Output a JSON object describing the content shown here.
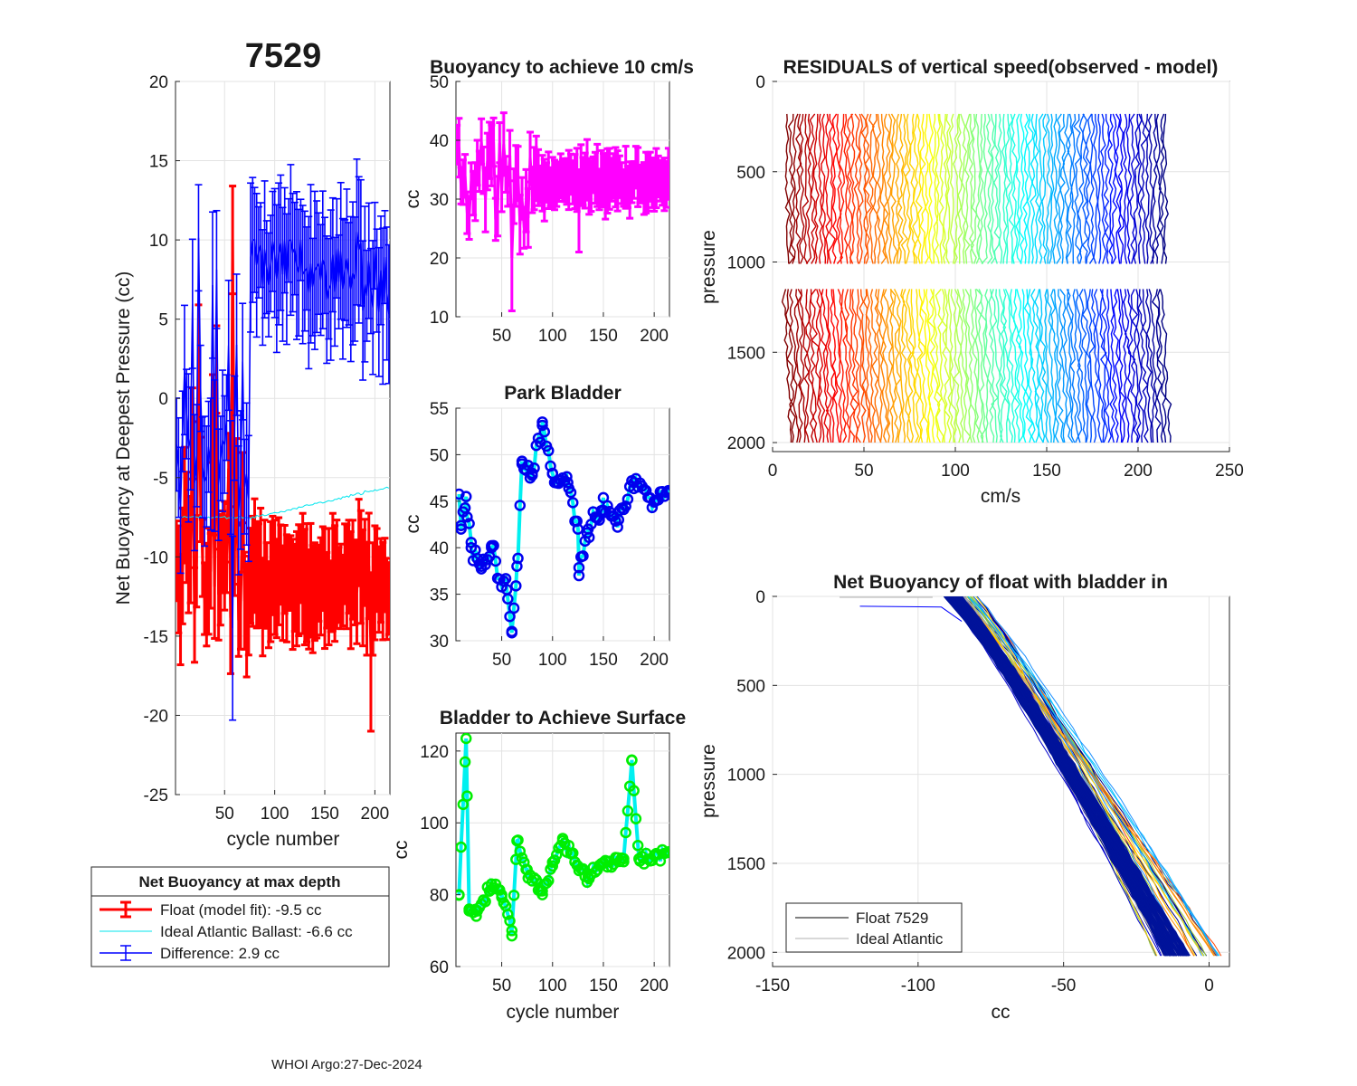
{
  "page": {
    "title": "7529",
    "footer": "WHOI Argo:27-Dec-2024"
  },
  "colors": {
    "float": "#ff0000",
    "ideal": "#00e5ee",
    "difference": "#0000ff",
    "buoyancy": "#ff00ff",
    "park_marker": "#0000ee",
    "park_line": "#00f0f0",
    "surface_marker": "#00ee00",
    "surface_line": "#00f0f0",
    "ideal_line": "#b0b0b0",
    "float_line": "#000000"
  },
  "chart_data": [
    {
      "id": "net_buoyancy",
      "type": "line",
      "title": "7529",
      "xlabel": "cycle number",
      "ylabel": "Net Buoyancy at Deepest Pressure (cc)",
      "xlim": [
        1,
        215
      ],
      "ylim": [
        -25,
        20
      ],
      "xticks": [
        50,
        100,
        150,
        200
      ],
      "yticks": [
        20,
        15,
        10,
        5,
        0,
        -5,
        -10,
        -15,
        -20,
        -25
      ],
      "series": [
        {
          "name": "Float (model fit)",
          "center_range_early": [
            -14,
            5
          ],
          "center_range_late": [
            -14,
            -9
          ],
          "errorbar": 2.5,
          "max": 13.4,
          "min": -21
        },
        {
          "name": "Ideal Atlantic Ballast",
          "start": -7.5,
          "end": -5.6
        },
        {
          "name": "Difference",
          "center_range_early": [
            -10,
            3
          ],
          "center_range_late": [
            4,
            9
          ],
          "errorbar": 3,
          "max": 15.1,
          "min": -20.3
        }
      ],
      "legend": {
        "title": "Net Buoyancy at max depth",
        "entries": [
          {
            "label": "Float (model fit):  -9.5 cc"
          },
          {
            "label": "Ideal Atlantic Ballast:  -6.6 cc"
          },
          {
            "label": "Difference:   2.9 cc"
          }
        ]
      }
    },
    {
      "id": "buoyancy_10cms",
      "type": "line",
      "title": "Buoyancy to achieve 10 cm/s",
      "xlabel": "",
      "ylabel": "cc",
      "xlim": [
        5,
        215
      ],
      "ylim": [
        10,
        50
      ],
      "xticks": [
        50,
        100,
        150,
        200
      ],
      "yticks": [
        50,
        40,
        30,
        20,
        10
      ],
      "series": [
        {
          "name": "buoyancy",
          "early_range": [
            25,
            40
          ],
          "late_range": [
            30,
            36
          ],
          "errorbar": 4,
          "max": 44,
          "min": 11
        }
      ]
    },
    {
      "id": "park_bladder",
      "type": "line",
      "title": "Park Bladder",
      "xlabel": "",
      "ylabel": "cc",
      "xlim": [
        5,
        215
      ],
      "ylim": [
        30,
        55
      ],
      "xticks": [
        50,
        100,
        150,
        200
      ],
      "yticks": [
        55,
        50,
        45,
        40,
        35,
        30
      ],
      "keypoints": [
        [
          10,
          42
        ],
        [
          15,
          45.5
        ],
        [
          20,
          40
        ],
        [
          30,
          38
        ],
        [
          40,
          40
        ],
        [
          55,
          35.5
        ],
        [
          60,
          31
        ],
        [
          65,
          38
        ],
        [
          70,
          49
        ],
        [
          80,
          48
        ],
        [
          90,
          53.5
        ],
        [
          100,
          48
        ],
        [
          115,
          47
        ],
        [
          125,
          42
        ],
        [
          126,
          37
        ],
        [
          135,
          42
        ],
        [
          150,
          44
        ],
        [
          165,
          43
        ],
        [
          180,
          47
        ],
        [
          200,
          45
        ],
        [
          215,
          46
        ]
      ]
    },
    {
      "id": "bladder_surface",
      "type": "line",
      "title": "Bladder to Achieve Surface",
      "xlabel": "cycle number",
      "ylabel": "cc",
      "xlim": [
        5,
        215
      ],
      "ylim": [
        60,
        125
      ],
      "xticks": [
        50,
        100,
        150,
        200
      ],
      "yticks": [
        120,
        100,
        80,
        60
      ],
      "keypoints": [
        [
          8,
          80
        ],
        [
          15,
          123.5
        ],
        [
          18,
          76
        ],
        [
          25,
          74
        ],
        [
          40,
          83
        ],
        [
          50,
          80
        ],
        [
          60,
          70
        ],
        [
          65,
          95
        ],
        [
          75,
          87
        ],
        [
          90,
          80
        ],
        [
          100,
          88
        ],
        [
          110,
          95
        ],
        [
          125,
          88
        ],
        [
          135,
          85
        ],
        [
          150,
          89
        ],
        [
          170,
          90
        ],
        [
          178,
          117.5
        ],
        [
          185,
          90
        ],
        [
          200,
          91
        ],
        [
          215,
          92
        ]
      ]
    },
    {
      "id": "residuals",
      "type": "line",
      "title": "RESIDUALS of vertical speed(observed - model)",
      "xlabel": "cm/s",
      "ylabel": "pressure",
      "xlim": [
        0,
        250
      ],
      "ylim": [
        0,
        2050
      ],
      "xticks": [
        0,
        50,
        100,
        150,
        200,
        250
      ],
      "yticks": [
        0,
        500,
        1000,
        1500,
        2000
      ],
      "upper_segment": [
        180,
        1010
      ],
      "lower_segment": [
        1150,
        2000
      ],
      "offset_range": [
        8,
        215
      ],
      "colormap": "jet"
    },
    {
      "id": "net_buoyancy_profile",
      "type": "line",
      "title": "Net Buoyancy of float with bladder in",
      "xlabel": "cc",
      "ylabel": "pressure",
      "xlim": [
        -150,
        7
      ],
      "ylim": [
        0,
        2080
      ],
      "xticks": [
        -150,
        -100,
        -50,
        0
      ],
      "yticks": [
        0,
        500,
        1000,
        1500,
        2000
      ],
      "surface_range": [
        -95,
        -80
      ],
      "bottom_range": [
        -20,
        5
      ],
      "legend": {
        "entries": [
          {
            "label": "Float 7529"
          },
          {
            "label": "Ideal Atlantic"
          }
        ]
      }
    }
  ]
}
